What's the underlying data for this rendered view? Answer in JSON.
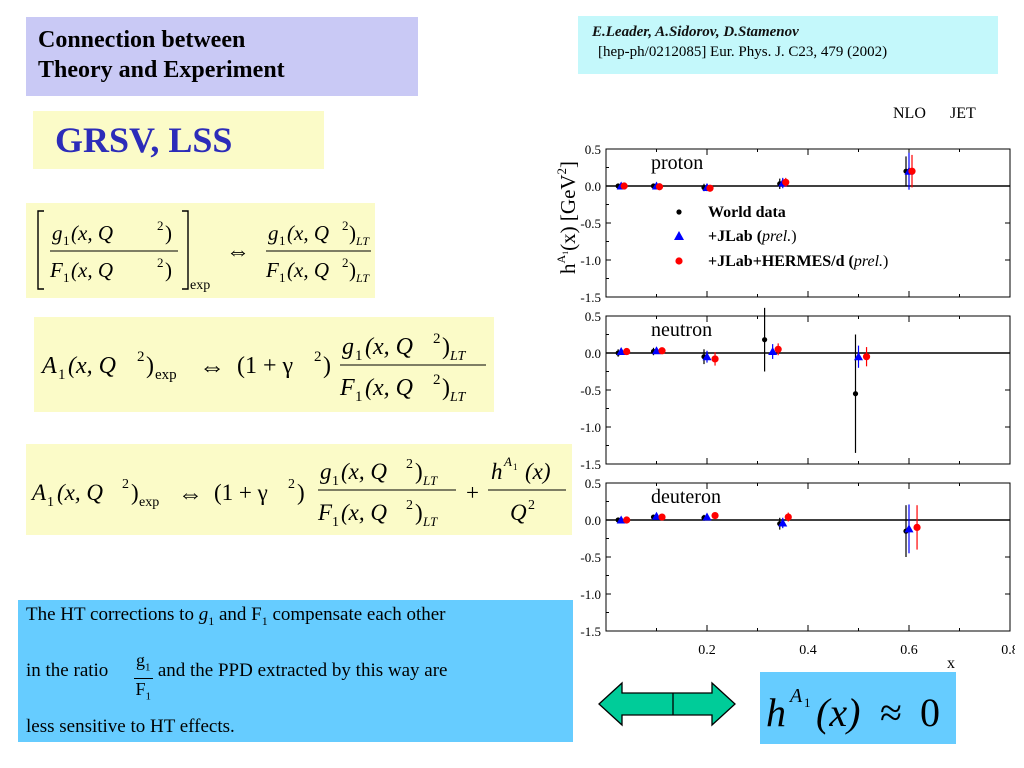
{
  "title": {
    "line1": "Connection between",
    "line2": "Theory and Experiment"
  },
  "reference": {
    "authors": "E.Leader, A.Sidorov, D.Stamenov",
    "citation": "[hep-ph/0212085] Eur. Phys. J. C23, 479 (2002)"
  },
  "models": "GRSV, LSS",
  "equations": {
    "g1": "g",
    "F1": "F",
    "sub1": "1",
    "args": "(x, Q",
    "sq": "2",
    "close": ")",
    "sub_lt": "LT",
    "sub_exp": "exp",
    "equiv": "⇔",
    "A": "A",
    "one_plus_gamma": "(1 + γ",
    "h": "h",
    "hx": "(x)",
    "Q": "Q",
    "plus": "+",
    "approx": "≈",
    "zero": "0"
  },
  "note": {
    "l1_pre": "The HT corrections to",
    "g": "g",
    "sub": "1",
    "and": "and F",
    "l1_post": "compensate each other",
    "l2_pre": "in the ratio",
    "frac_num": "g",
    "frac_den": "F",
    "l2_post": "and the PPD extracted by this way are",
    "l3": "less sensitive to HT effects."
  },
  "plot": {
    "top_labels": [
      "NLO",
      "JET"
    ],
    "ylabel": "h",
    "ylabel_sup": "A",
    "ylabel_supsub": "1",
    "ylabel_rest": "(x) [GeV",
    "ylabel_exp": "2",
    "ylabel_close": "]",
    "xlabel": "x",
    "x_ticks": [
      "0.2",
      "0.4",
      "0.6",
      "0.8"
    ],
    "y_ticks": [
      "0.5",
      "0.0",
      "-0.5",
      "-1.0",
      "-1.5"
    ],
    "legend": [
      {
        "label": "World data",
        "italic": "",
        "close": "",
        "color": "#000000",
        "marker": "circle"
      },
      {
        "label": "+JLab (",
        "italic": "prel.",
        "close": ")",
        "color": "#0000ff",
        "marker": "triangle"
      },
      {
        "label": "+JLab+HERMES/d (",
        "italic": "prel.",
        "close": ")",
        "color": "#ff0000",
        "marker": "circle"
      }
    ]
  },
  "colors": {
    "title_bg": "#c9c9f5",
    "ref_bg": "#c4f8fb",
    "eq_bg": "#fbfbc8",
    "note_bg": "#66ccff",
    "arrow": "#00cc99",
    "models_text": "#2c2cb9"
  },
  "chart_data": [
    {
      "type": "scatter",
      "title": "proton",
      "xlabel": "x",
      "ylabel": "h^A1(x) [GeV^2]",
      "xlim": [
        0,
        0.8
      ],
      "ylim": [
        -1.5,
        0.5
      ],
      "series": [
        {
          "name": "World data",
          "color": "#000000",
          "marker": "circle",
          "points": [
            {
              "x": 0.03,
              "y": 0.0,
              "err": 0.03
            },
            {
              "x": 0.1,
              "y": 0.0,
              "err": 0.03
            },
            {
              "x": 0.2,
              "y": -0.02,
              "err": 0.05
            },
            {
              "x": 0.35,
              "y": 0.03,
              "err": 0.07
            },
            {
              "x": 0.6,
              "y": 0.2,
              "err": 0.2
            }
          ]
        },
        {
          "name": "+JLab (prel.)",
          "color": "#0000ff",
          "marker": "triangle",
          "points": [
            {
              "x": 0.03,
              "y": 0.0,
              "err": 0.03
            },
            {
              "x": 0.1,
              "y": 0.0,
              "err": 0.03
            },
            {
              "x": 0.2,
              "y": -0.02,
              "err": 0.05
            },
            {
              "x": 0.35,
              "y": 0.04,
              "err": 0.07
            },
            {
              "x": 0.6,
              "y": 0.2,
              "err": 0.25
            }
          ]
        },
        {
          "name": "+JLab+HERMES/d (prel.)",
          "color": "#ff0000",
          "marker": "circle",
          "points": [
            {
              "x": 0.03,
              "y": 0.0,
              "err": 0.02
            },
            {
              "x": 0.1,
              "y": -0.01,
              "err": 0.03
            },
            {
              "x": 0.2,
              "y": -0.03,
              "err": 0.04
            },
            {
              "x": 0.35,
              "y": 0.05,
              "err": 0.06
            },
            {
              "x": 0.6,
              "y": 0.2,
              "err": 0.22
            }
          ]
        }
      ]
    },
    {
      "type": "scatter",
      "title": "neutron",
      "xlabel": "x",
      "ylabel": "h^A1(x) [GeV^2]",
      "xlim": [
        0,
        0.8
      ],
      "ylim": [
        -1.5,
        0.5
      ],
      "series": [
        {
          "name": "World data",
          "color": "#000000",
          "marker": "circle",
          "points": [
            {
              "x": 0.03,
              "y": 0.0,
              "err": 0.05
            },
            {
              "x": 0.1,
              "y": 0.02,
              "err": 0.05
            },
            {
              "x": 0.2,
              "y": -0.05,
              "err": 0.1
            },
            {
              "x": 0.32,
              "y": 0.18,
              "err": 0.43
            },
            {
              "x": 0.5,
              "y": -0.55,
              "err": 0.8
            }
          ]
        },
        {
          "name": "+JLab (prel.)",
          "color": "#0000ff",
          "marker": "triangle",
          "points": [
            {
              "x": 0.03,
              "y": 0.02,
              "err": 0.04
            },
            {
              "x": 0.1,
              "y": 0.03,
              "err": 0.04
            },
            {
              "x": 0.2,
              "y": -0.05,
              "err": 0.08
            },
            {
              "x": 0.33,
              "y": 0.02,
              "err": 0.1
            },
            {
              "x": 0.5,
              "y": -0.05,
              "err": 0.15
            }
          ]
        },
        {
          "name": "+JLab+HERMES/d (prel.)",
          "color": "#ff0000",
          "marker": "circle",
          "points": [
            {
              "x": 0.035,
              "y": 0.02,
              "err": 0.04
            },
            {
              "x": 0.105,
              "y": 0.03,
              "err": 0.04
            },
            {
              "x": 0.21,
              "y": -0.08,
              "err": 0.09
            },
            {
              "x": 0.335,
              "y": 0.05,
              "err": 0.08
            },
            {
              "x": 0.51,
              "y": -0.05,
              "err": 0.13
            }
          ]
        }
      ]
    },
    {
      "type": "scatter",
      "title": "deuteron",
      "xlabel": "x",
      "ylabel": "h^A1(x) [GeV^2]",
      "xlim": [
        0,
        0.8
      ],
      "ylim": [
        -1.5,
        0.5
      ],
      "series": [
        {
          "name": "World data",
          "color": "#000000",
          "marker": "circle",
          "points": [
            {
              "x": 0.03,
              "y": 0.0,
              "err": 0.03
            },
            {
              "x": 0.1,
              "y": 0.04,
              "err": 0.03
            },
            {
              "x": 0.2,
              "y": 0.03,
              "err": 0.04
            },
            {
              "x": 0.35,
              "y": -0.05,
              "err": 0.08
            },
            {
              "x": 0.6,
              "y": -0.15,
              "err": 0.35
            }
          ]
        },
        {
          "name": "+JLab (prel.)",
          "color": "#0000ff",
          "marker": "triangle",
          "points": [
            {
              "x": 0.03,
              "y": 0.0,
              "err": 0.03
            },
            {
              "x": 0.1,
              "y": 0.05,
              "err": 0.03
            },
            {
              "x": 0.2,
              "y": 0.04,
              "err": 0.04
            },
            {
              "x": 0.35,
              "y": -0.04,
              "err": 0.07
            },
            {
              "x": 0.6,
              "y": -0.12,
              "err": 0.33
            }
          ]
        },
        {
          "name": "+JLab+HERMES/d (prel.)",
          "color": "#ff0000",
          "marker": "circle",
          "points": [
            {
              "x": 0.035,
              "y": 0.0,
              "err": 0.03
            },
            {
              "x": 0.105,
              "y": 0.04,
              "err": 0.03
            },
            {
              "x": 0.21,
              "y": 0.06,
              "err": 0.04
            },
            {
              "x": 0.355,
              "y": 0.04,
              "err": 0.06
            },
            {
              "x": 0.61,
              "y": -0.1,
              "err": 0.3
            }
          ]
        }
      ]
    }
  ]
}
